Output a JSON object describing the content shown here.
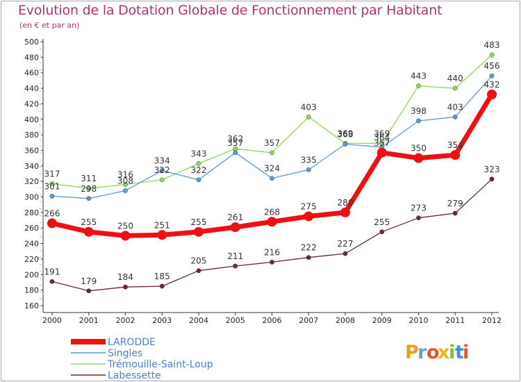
{
  "title": "Evolution de la Dotation Globale de Fonctionnement par Habitant",
  "subtitle": "(en € et par an)",
  "logo": "Proxiti",
  "colors": {
    "title": "#b5336f",
    "larodde": "#ee1111",
    "singles": "#5b9bd5",
    "tremouille": "#8fd65a",
    "labessette": "#6b2a2a",
    "legend_text": "#4a7fd8"
  },
  "chart_data": {
    "type": "line",
    "title": "Evolution de la Dotation Globale de Fonctionnement par Habitant",
    "subtitle": "(en € et par an)",
    "x": [
      "2000",
      "2001",
      "2002",
      "2003",
      "2004",
      "2005",
      "2006",
      "2007",
      "2008",
      "2009",
      "2010",
      "2011",
      "2012"
    ],
    "ylim": [
      160,
      500
    ],
    "yticks": [
      160,
      180,
      200,
      220,
      240,
      260,
      280,
      300,
      320,
      340,
      360,
      380,
      400,
      420,
      440,
      460,
      480,
      500
    ],
    "grid": false,
    "legend_position": "bottom-left",
    "series": [
      {
        "name": "Trémouille-Saint-Loup",
        "key": "tremouille",
        "values": [
          317,
          311,
          316,
          322,
          343,
          362,
          357,
          403,
          369,
          369,
          443,
          440,
          483
        ],
        "labels": [
          "317",
          "311",
          "316",
          "322",
          "343",
          "362",
          "357",
          "403",
          "369",
          "369",
          "443",
          "440",
          "483"
        ]
      },
      {
        "name": "Singles",
        "key": "singles",
        "values": [
          301,
          298,
          308,
          334,
          322,
          357,
          324,
          335,
          368,
          364,
          398,
          403,
          456
        ],
        "labels": [
          "301",
          "298",
          "308",
          "334",
          "322",
          "357",
          "324",
          "335",
          "368",
          "364",
          "398",
          "403",
          "456"
        ]
      },
      {
        "name": "Labessette",
        "key": "labessette",
        "values": [
          191,
          179,
          184,
          185,
          205,
          211,
          216,
          222,
          227,
          255,
          273,
          279,
          323
        ],
        "labels": [
          "191",
          "179",
          "184",
          "185",
          "205",
          "211",
          "216",
          "222",
          "227",
          "255",
          "273",
          "279",
          "323"
        ]
      },
      {
        "name": "LARODDE",
        "key": "larodde",
        "values": [
          266,
          255,
          250,
          251,
          255,
          261,
          268,
          275,
          280,
          357,
          350,
          354,
          432
        ],
        "labels": [
          "266",
          "255",
          "250",
          "251",
          "255",
          "261",
          "268",
          "275",
          "280",
          "357",
          "350",
          "354",
          "432"
        ]
      }
    ]
  }
}
